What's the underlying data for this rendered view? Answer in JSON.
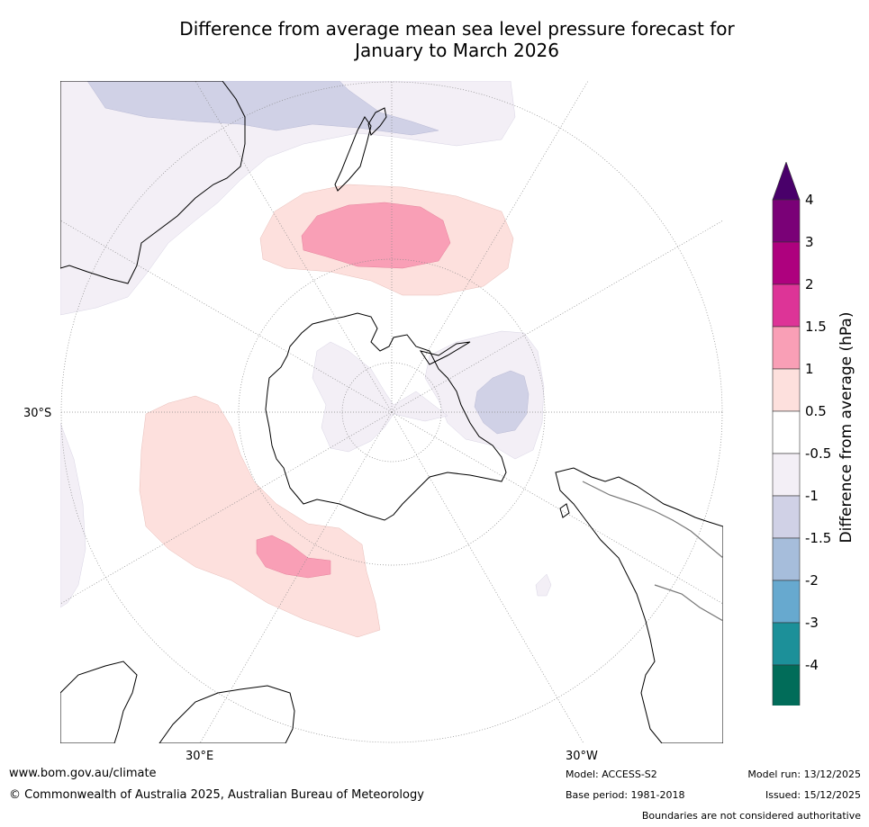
{
  "title_line1": "Difference from average mean sea level pressure forecast for",
  "title_line2": "January to March 2026",
  "map_labels": {
    "lat_30s": "30°S",
    "lon_30e": "30°E",
    "lon_30w": "30°W"
  },
  "colorbar": {
    "title": "Difference from average (hPa)",
    "ticks": [
      "4",
      "3",
      "2",
      "1.5",
      "1",
      "0.5",
      "-0.5",
      "-1",
      "-1.5",
      "-2",
      "-3",
      "-4"
    ],
    "colors": [
      "#7a0177",
      "#ae017e",
      "#dd3497",
      "#f99fb6",
      "#fde0dd",
      "#ffffff",
      "#f3eff6",
      "#d0d1e6",
      "#a6bddb",
      "#67a9cf",
      "#1c9099",
      "#016c59"
    ],
    "over_color": "#49006a",
    "under_color": "#016450"
  },
  "footer": {
    "website": "www.bom.gov.au/climate",
    "copyright": "© Commonwealth of Australia 2025, Australian Bureau of Meteorology",
    "model": "Model: ACCESS-S2",
    "base_period": "Base period: 1981-2018",
    "model_run": "Model run: 13/12/2025",
    "issued": "Issued: 15/12/2025",
    "disclaimer": "Boundaries are not considered authoritative"
  }
}
